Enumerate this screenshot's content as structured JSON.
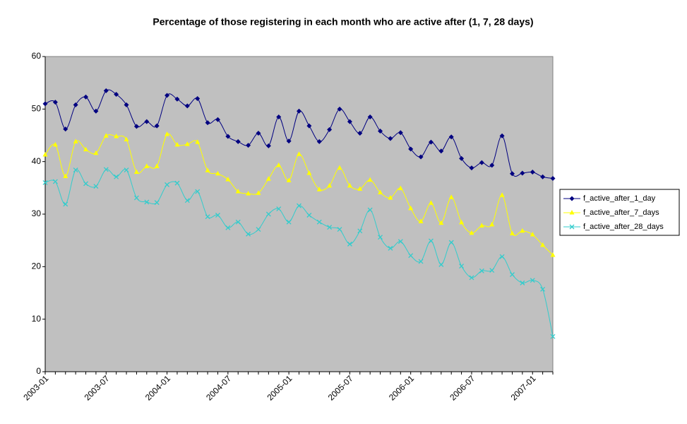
{
  "chart_data": {
    "type": "line",
    "title": "Percentage of those registering in each month who are active after (1, 7, 28 days)",
    "categories": [
      "2003-01",
      null,
      null,
      null,
      null,
      null,
      "2003-07",
      null,
      null,
      null,
      null,
      null,
      "2004-01",
      null,
      null,
      null,
      null,
      null,
      "2004-07",
      null,
      null,
      null,
      null,
      null,
      "2005-01",
      null,
      null,
      null,
      null,
      null,
      "2005-07",
      null,
      null,
      null,
      null,
      null,
      "2006-01",
      null,
      null,
      null,
      null,
      null,
      "2006-07",
      null,
      null,
      null,
      null,
      null,
      "2007-01",
      null,
      null
    ],
    "series": [
      {
        "name": "f_active_after_1_day",
        "color": "#000080",
        "marker": "diamond",
        "values": [
          51,
          51.3,
          46.2,
          50.8,
          52.3,
          49.6,
          53.5,
          52.8,
          50.8,
          46.7,
          47.6,
          46.8,
          52.6,
          51.9,
          50.6,
          52,
          47.4,
          48,
          44.8,
          43.8,
          43.1,
          45.4,
          43,
          48.5,
          43.9,
          49.6,
          46.8,
          43.8,
          46.1,
          50,
          47.6,
          45.4,
          48.5,
          45.8,
          44.4,
          45.5,
          42.4,
          40.9,
          43.7,
          42,
          44.7,
          40.6,
          38.8,
          39.8,
          39.3,
          44.9,
          37.7,
          37.8,
          38,
          37.1,
          36.8
        ]
      },
      {
        "name": "f_active_after_7_days",
        "color": "#ffff00",
        "marker": "triangle",
        "values": [
          41.3,
          43.2,
          37.2,
          43.8,
          42.3,
          41.6,
          44.9,
          44.8,
          44.2,
          38,
          39.1,
          39.1,
          45.2,
          43.2,
          43.3,
          43.7,
          38.3,
          37.7,
          36.6,
          34.3,
          33.9,
          34,
          36.7,
          39.3,
          36.4,
          41.4,
          37.8,
          34.7,
          35.4,
          38.8,
          35.4,
          34.8,
          36.5,
          34.1,
          33.1,
          34.9,
          31.1,
          28.6,
          32.1,
          28.3,
          33.2,
          28.4,
          26.4,
          27.8,
          28,
          33.6,
          26.3,
          26.8,
          26.1,
          24.1,
          22.2
        ]
      },
      {
        "name": "f_active_after_28_days",
        "color": "#33cccc",
        "marker": "x",
        "values": [
          36,
          36.2,
          31.9,
          38.4,
          35.8,
          35.3,
          38.5,
          37.1,
          38.4,
          33.1,
          32.3,
          32.2,
          35.6,
          35.9,
          32.6,
          34.3,
          29.5,
          29.8,
          27.4,
          28.5,
          26.2,
          27.1,
          30,
          31,
          28.5,
          31.6,
          29.8,
          28.5,
          27.5,
          27.1,
          24.3,
          26.8,
          30.8,
          25.6,
          23.5,
          24.8,
          22.1,
          21,
          24.9,
          20.4,
          24.6,
          20.1,
          17.9,
          19.2,
          19.3,
          21.9,
          18.5,
          16.9,
          17.4,
          15.7,
          6.7
        ]
      }
    ],
    "ylim": [
      0,
      60
    ],
    "yticks": [
      0,
      10,
      20,
      30,
      40,
      50,
      60
    ],
    "grid": false,
    "legend": "right",
    "smooth": true
  }
}
